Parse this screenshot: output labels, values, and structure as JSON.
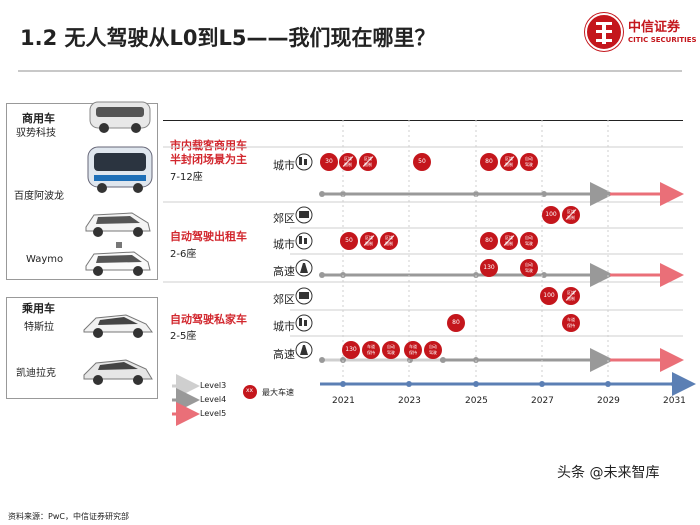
{
  "header": {
    "title": "1.2 无人驾驶从L0到L5——我们现在哪里？",
    "logo_cn": "中信证券",
    "logo_en": "CITIC SECURITIES"
  },
  "left": {
    "commercial_title": "商用车",
    "companies_commercial": [
      "驭势科技",
      "百度阿波龙",
      "Waymo"
    ],
    "passenger_title": "乘用车",
    "companies_passenger": [
      "特斯拉",
      "凯迪拉克"
    ]
  },
  "segments": [
    {
      "label_line1": "市内载客商用车",
      "label_line2": "半封闭场景为主",
      "seats": "7-12座"
    },
    {
      "label_line1": "自动驾驶出租车",
      "label_line2": "",
      "seats": "2-6座"
    },
    {
      "label_line1": "自动驾驶私家车",
      "label_line2": "",
      "seats": "2-5座"
    }
  ],
  "roads": {
    "city": "城市",
    "suburb": "郊区",
    "highway": "高速"
  },
  "badges": {
    "area": "区域\n限制",
    "plain": "区域\n限制",
    "ai": "自动\n驾驶",
    "lane": "车道\n保持"
  },
  "speeds": [
    "30",
    "50",
    "80",
    "100",
    "130"
  ],
  "legend": {
    "level3": "Level3",
    "level4": "Level4",
    "level5": "Level5",
    "max_speed": "最大车速",
    "max_speed_badge": "xx"
  },
  "axis": {
    "ticks": [
      "2021",
      "2023",
      "2025",
      "2027",
      "2029",
      "2031"
    ]
  },
  "footer": {
    "source": "资料来源：PwC，中信证券研究部",
    "watermark": "头条 @未来智库"
  },
  "colors": {
    "red": "#c4161c",
    "grey": "#999999",
    "light_grey": "#cfcfcf",
    "pink": "#ea6f78",
    "axis_blue": "#5b7fb4"
  }
}
